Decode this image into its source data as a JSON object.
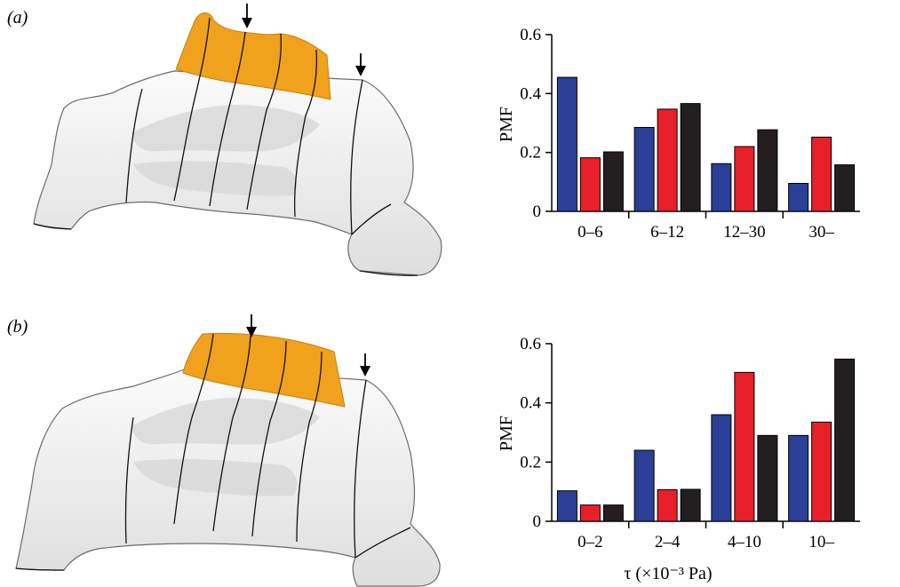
{
  "colors": {
    "series1": "#2b3f96",
    "series2": "#e8202a",
    "series3": "#231f20",
    "region": "#f0a21c",
    "surface": "#efefef"
  },
  "chart_data": [
    {
      "type": "bar",
      "panel_label": "(a)",
      "ylabel": "PMF",
      "xlabel": "",
      "ylim": [
        0,
        0.6
      ],
      "yticks": [
        "0",
        "0.2",
        "0.4",
        "0.6"
      ],
      "grid": false,
      "legend": false,
      "categories": [
        "0–6",
        "6–12",
        "12–30",
        "30–"
      ],
      "series": [
        {
          "values": [
            0.455,
            0.285,
            0.162,
            0.095
          ]
        },
        {
          "values": [
            0.182,
            0.347,
            0.22,
            0.252
          ]
        },
        {
          "values": [
            0.202,
            0.366,
            0.277,
            0.158
          ]
        }
      ]
    },
    {
      "type": "bar",
      "panel_label": "(b)",
      "ylabel": "PMF",
      "xlabel": "τ (×10⁻³ Pa)",
      "ylim": [
        0,
        0.6
      ],
      "yticks": [
        "0",
        "0.2",
        "0.4",
        "0.6"
      ],
      "grid": false,
      "legend": false,
      "categories": [
        "0–2",
        "2–4",
        "4–10",
        "10–"
      ],
      "series": [
        {
          "values": [
            0.103,
            0.24,
            0.36,
            0.29
          ]
        },
        {
          "values": [
            0.055,
            0.107,
            0.503,
            0.335
          ]
        },
        {
          "values": [
            0.055,
            0.108,
            0.29,
            0.548
          ]
        }
      ]
    }
  ],
  "illustrations": [
    {
      "name": "nasal-cavity-model-a",
      "markers": 2,
      "marker_icon": "down-arrow-icon"
    },
    {
      "name": "nasal-cavity-model-b",
      "markers": 2,
      "marker_icon": "down-arrow-icon"
    }
  ]
}
